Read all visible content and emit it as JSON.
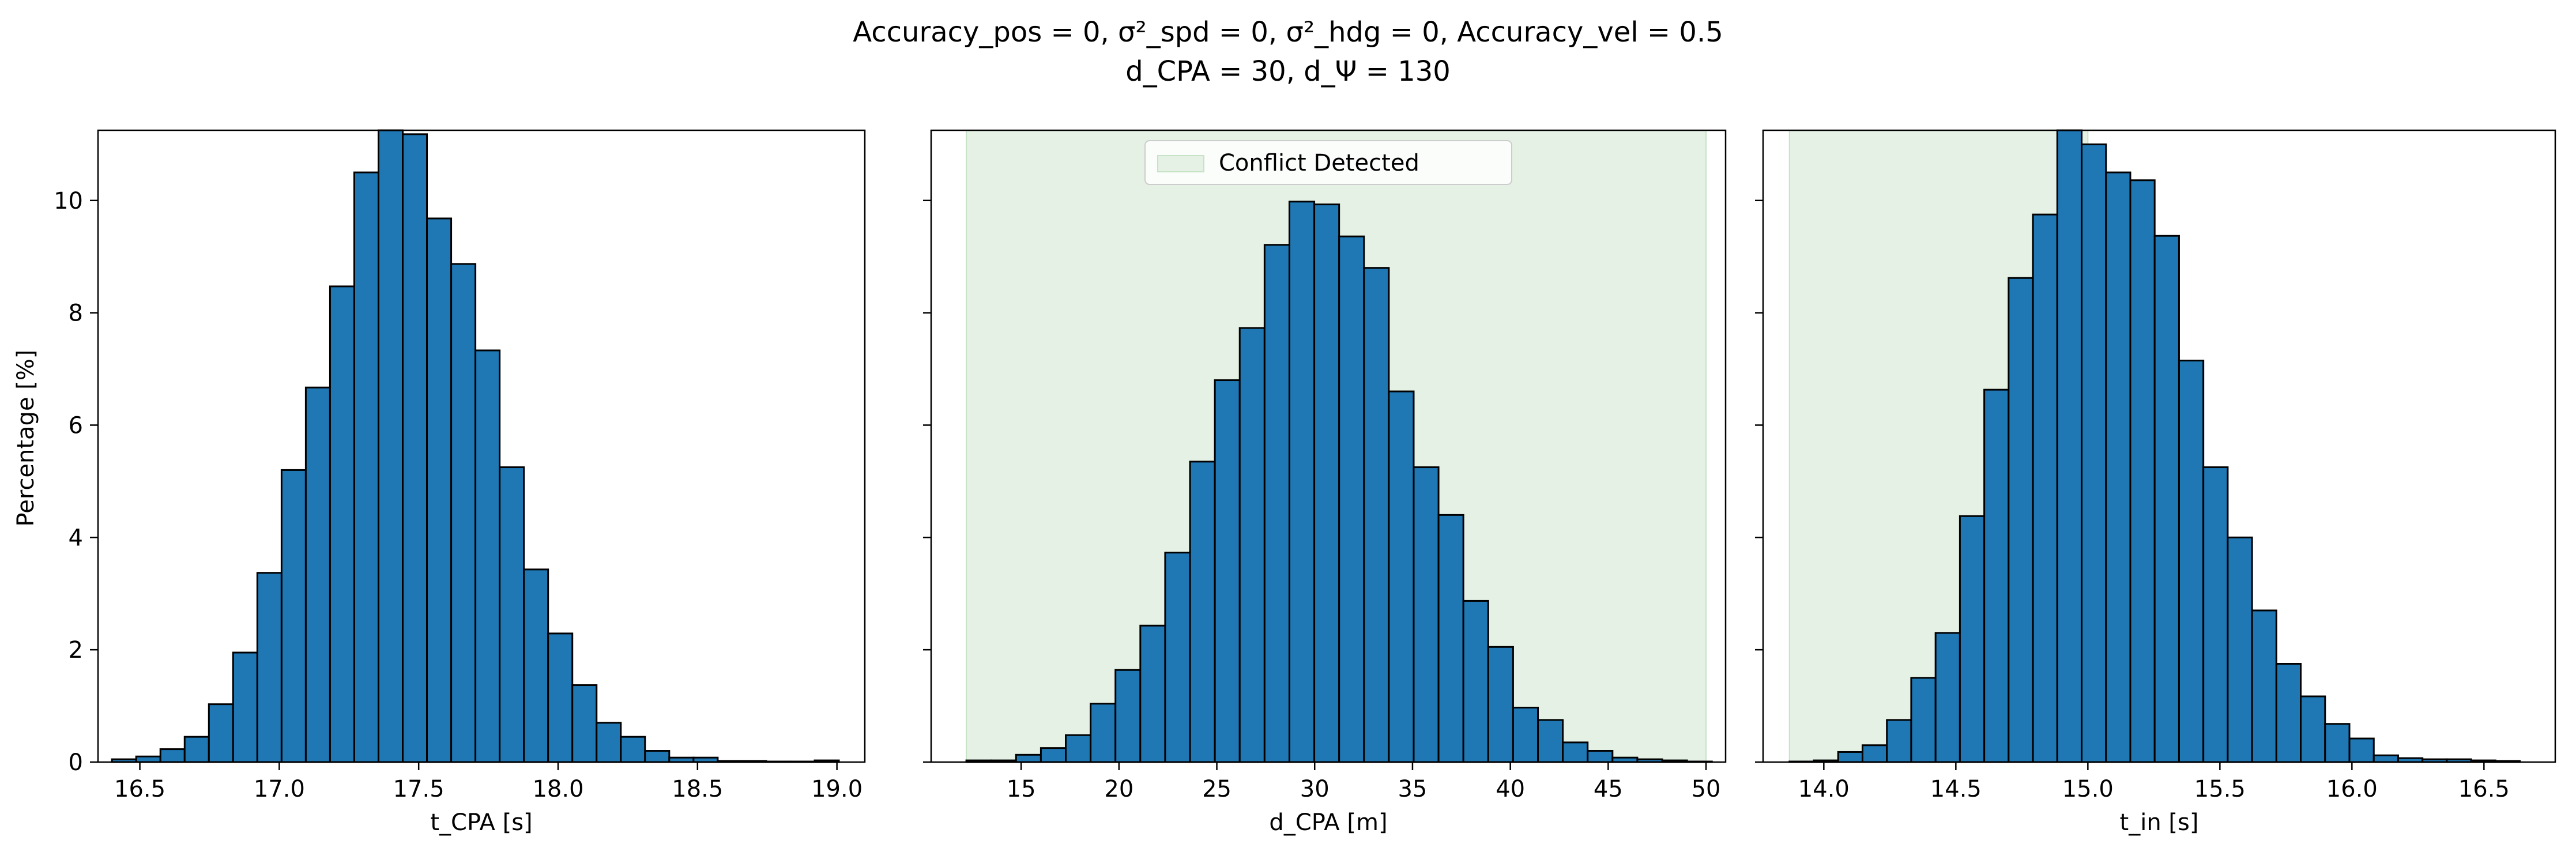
{
  "colors": {
    "bar_fill": "#1f77b4",
    "bar_edge": "#000000",
    "conflict_region": "#e4f1e4",
    "conflict_edge": "#c6e3c6"
  },
  "figure": {
    "title_line1": "Accuracy_pos = 0, σ²_spd = 0, σ²_hdg = 0, Accuracy_vel = 0.5",
    "title_line2": "d_CPA = 30, d_Ψ = 130",
    "shared_ylabel": "Percentage [%]"
  },
  "chart_data": [
    {
      "type": "bar",
      "xlabel": "t_CPA [s]",
      "ylabel": "Percentage [%]",
      "xlim": [
        16.35,
        19.1
      ],
      "ylim": [
        0,
        11.25
      ],
      "xticks": [
        16.5,
        17.0,
        17.5,
        18.0,
        18.5,
        19.0
      ],
      "xtick_labels": [
        "16.5",
        "17.0",
        "17.5",
        "18.0",
        "18.5",
        "19.0"
      ],
      "yticks": [
        0,
        2,
        4,
        6,
        8,
        10
      ],
      "ytick_labels": [
        "0",
        "2",
        "4",
        "6",
        "8",
        "10"
      ],
      "bin_start": 16.4,
      "bin_width": 0.0869,
      "values": [
        0.05,
        0.1,
        0.23,
        0.45,
        1.03,
        1.95,
        3.37,
        5.2,
        6.67,
        8.47,
        10.5,
        11.25,
        11.18,
        9.68,
        8.87,
        7.33,
        5.25,
        3.43,
        2.29,
        1.37,
        0.7,
        0.45,
        0.2,
        0.08,
        0.08,
        0.02,
        0.02,
        0.01,
        0.01,
        0.03
      ],
      "grid": false,
      "shaded_region": null,
      "legend": null
    },
    {
      "type": "bar",
      "xlabel": "d_CPA [m]",
      "ylabel": "",
      "xlim": [
        10.4,
        51.0
      ],
      "ylim": [
        0,
        11.25
      ],
      "xticks": [
        15,
        20,
        25,
        30,
        35,
        40,
        45,
        50
      ],
      "xtick_labels": [
        "15",
        "20",
        "25",
        "30",
        "35",
        "40",
        "45",
        "50"
      ],
      "yticks": [
        0,
        2,
        4,
        6,
        8,
        10
      ],
      "ytick_labels": [
        "",
        "",
        "",
        "",
        "",
        ""
      ],
      "bin_start": 12.2,
      "bin_width": 1.27,
      "values": [
        0.03,
        0.03,
        0.13,
        0.25,
        0.48,
        1.04,
        1.64,
        2.43,
        3.73,
        5.35,
        6.8,
        7.73,
        9.21,
        9.98,
        9.93,
        9.36,
        8.8,
        6.6,
        5.25,
        4.4,
        2.87,
        2.05,
        0.97,
        0.75,
        0.35,
        0.2,
        0.08,
        0.05,
        0.03,
        0.01
      ],
      "grid": false,
      "shaded_region": [
        12.2,
        50.0
      ],
      "legend": {
        "label": "Conflict Detected",
        "placement": "upper center"
      }
    },
    {
      "type": "bar",
      "xlabel": "t_in [s]",
      "ylabel": "",
      "xlim": [
        13.77,
        16.77
      ],
      "ylim": [
        0,
        11.25
      ],
      "xticks": [
        14.0,
        14.5,
        15.0,
        15.5,
        16.0,
        16.5
      ],
      "xtick_labels": [
        "14.0",
        "14.5",
        "15.0",
        "15.5",
        "16.0",
        "16.5"
      ],
      "yticks": [
        0,
        2,
        4,
        6,
        8,
        10
      ],
      "ytick_labels": [
        "",
        "",
        "",
        "",
        "",
        ""
      ],
      "bin_start": 13.87,
      "bin_width": 0.0922,
      "values": [
        0.01,
        0.03,
        0.18,
        0.3,
        0.75,
        1.5,
        2.3,
        4.38,
        6.63,
        8.62,
        9.75,
        11.25,
        11.0,
        10.5,
        10.36,
        9.37,
        7.15,
        5.25,
        4.0,
        2.7,
        1.75,
        1.17,
        0.68,
        0.42,
        0.12,
        0.07,
        0.05,
        0.05,
        0.03,
        0.02
      ],
      "grid": false,
      "shaded_region": [
        13.87,
        15.0
      ],
      "legend": null
    }
  ]
}
